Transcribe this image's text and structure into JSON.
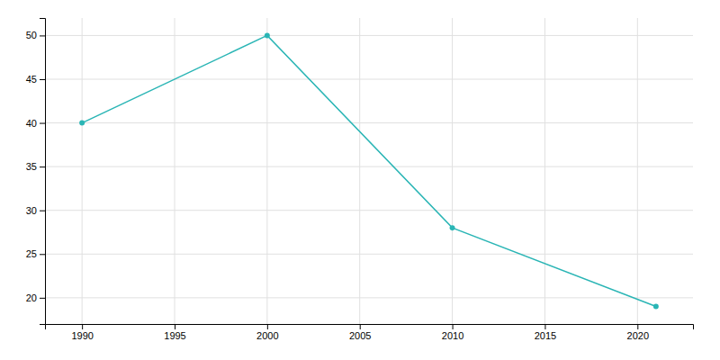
{
  "chart_data": {
    "type": "line",
    "x": [
      1990,
      2000,
      2010,
      2021
    ],
    "values": [
      40,
      50,
      28,
      19
    ],
    "color": "#2ab5b5",
    "marker": "circle",
    "xlim": [
      1988,
      2023
    ],
    "ylim": [
      17,
      52
    ],
    "xticks": [
      1990,
      1995,
      2000,
      2005,
      2010,
      2015,
      2020
    ],
    "yticks": [
      20,
      25,
      30,
      35,
      40,
      45,
      50
    ],
    "grid": true
  }
}
